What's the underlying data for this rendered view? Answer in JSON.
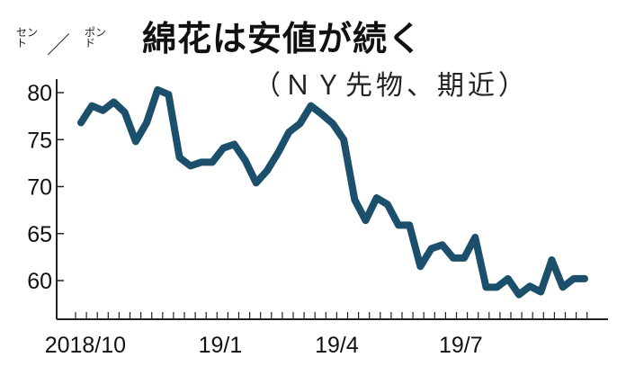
{
  "chart_data": {
    "type": "line",
    "title": "綿花は安値が続く",
    "subtitle": "（ＮＹ先物、期近）",
    "ylabel": {
      "numerator": "セント",
      "separator": "／",
      "denominator": "ポンド"
    },
    "ylim": [
      56,
      82
    ],
    "yticks": [
      60,
      65,
      70,
      75,
      80
    ],
    "xticks": [
      {
        "label": "2018/10",
        "week": 0.9
      },
      {
        "label": "19/1",
        "week": 13.3
      },
      {
        "label": "19/4",
        "week": 24
      },
      {
        "label": "19/7",
        "week": 35.4
      }
    ],
    "weekly_ticks": 48,
    "series": [
      {
        "name": "NY cotton futures (nearby)",
        "color": "#1b4f6b",
        "values": [
          76.8,
          78.6,
          78.1,
          79.0,
          77.9,
          74.8,
          76.8,
          80.3,
          79.8,
          73.1,
          72.2,
          72.6,
          72.6,
          74.1,
          74.5,
          72.8,
          70.4,
          71.7,
          73.6,
          75.8,
          76.7,
          78.6,
          77.7,
          76.7,
          75.0,
          68.6,
          66.4,
          68.8,
          68.1,
          65.9,
          65.9,
          61.5,
          63.4,
          63.8,
          62.4,
          62.4,
          64.6,
          59.3,
          59.3,
          60.2,
          58.5,
          59.4,
          58.8,
          62.2,
          59.3,
          60.2,
          60.2
        ]
      }
    ],
    "grid": false,
    "legend": "none"
  }
}
